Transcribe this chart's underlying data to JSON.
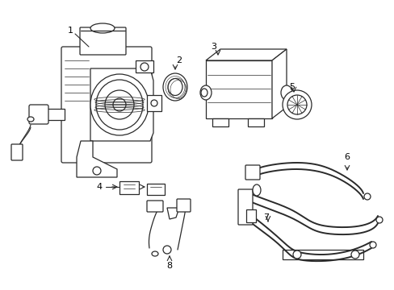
{
  "bg_color": "#ffffff",
  "line_color": "#2a2a2a",
  "label_color": "#000000",
  "fig_width": 4.89,
  "fig_height": 3.6,
  "dpi": 100,
  "lw": 0.9
}
